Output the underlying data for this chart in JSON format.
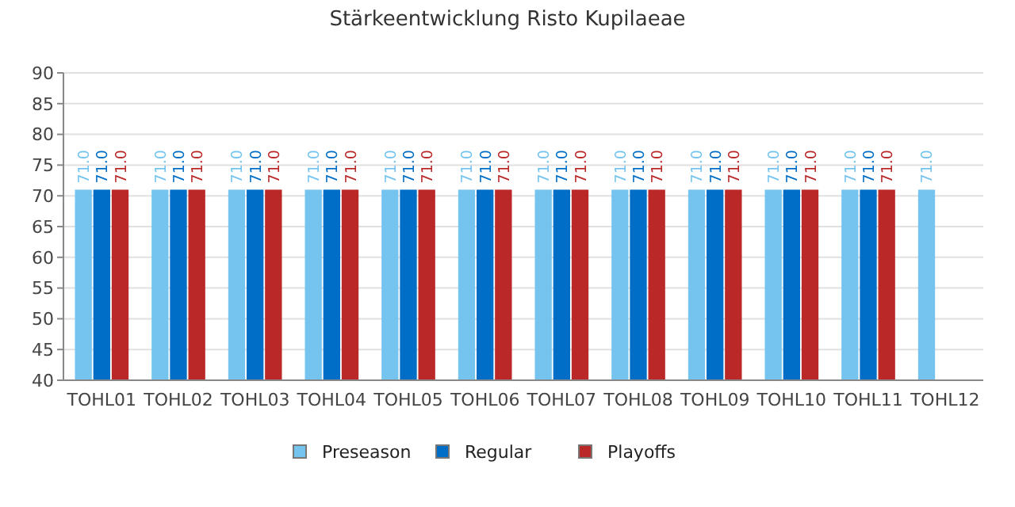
{
  "chart_data": {
    "type": "bar",
    "title": "Stärkeentwicklung Risto Kupilaeae",
    "categories": [
      "TOHL01",
      "TOHL02",
      "TOHL03",
      "TOHL04",
      "TOHL05",
      "TOHL06",
      "TOHL07",
      "TOHL08",
      "TOHL09",
      "TOHL10",
      "TOHL11",
      "TOHL12"
    ],
    "series": [
      {
        "name": "Preseason",
        "color": "#74c4ef",
        "values": [
          71,
          71,
          71,
          71,
          71,
          71,
          71,
          71,
          71,
          71,
          71,
          71
        ],
        "value_labels": [
          "71.0",
          "71.0",
          "71.0",
          "71.0",
          "71.0",
          "71.0",
          "71.0",
          "71.0",
          "71.0",
          "71.0",
          "71.0",
          "71.0"
        ]
      },
      {
        "name": "Regular",
        "color": "#006ec6",
        "values": [
          71,
          71,
          71,
          71,
          71,
          71,
          71,
          71,
          71,
          71,
          71,
          null
        ],
        "value_labels": [
          "71.0",
          "71.0",
          "71.0",
          "71.0",
          "71.0",
          "71.0",
          "71.0",
          "71.0",
          "71.0",
          "71.0",
          "71.0",
          null
        ]
      },
      {
        "name": "Playoffs",
        "color": "#ba2828",
        "values": [
          71,
          71,
          71,
          71,
          71,
          71,
          71,
          71,
          71,
          71,
          71,
          null
        ],
        "value_labels": [
          "71.0",
          "71.0",
          "71.0",
          "71.0",
          "71.0",
          "71.0",
          "71.0",
          "71.0",
          "71.0",
          "71.0",
          "71.0",
          null
        ]
      }
    ],
    "ylim": [
      40,
      90
    ],
    "yticks": [
      40,
      45,
      50,
      55,
      60,
      65,
      70,
      75,
      80,
      85,
      90
    ],
    "grid": "y",
    "legend": "bottom"
  }
}
